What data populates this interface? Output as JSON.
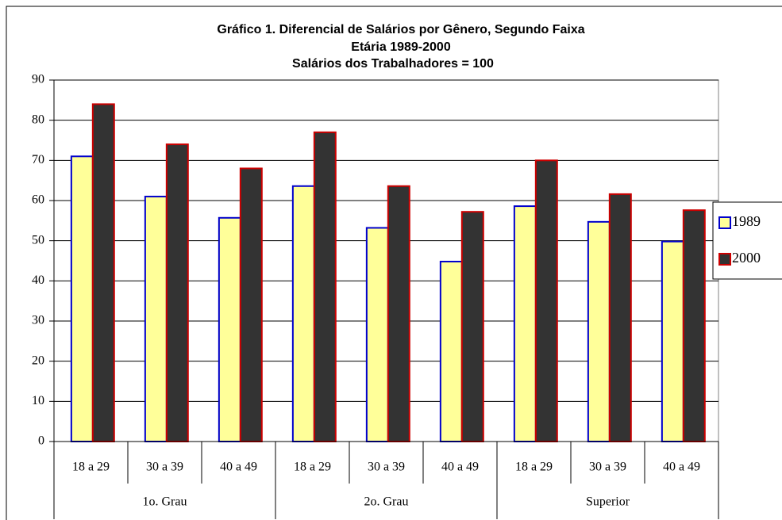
{
  "chart_data": {
    "type": "bar",
    "title": [
      "Gráfico 1. Diferencial de Salários por Gênero, Segundo Faixa",
      "Etária 1989-2000"
    ],
    "subtitle": "Salários dos Trabalhadores = 100",
    "categories": [
      "18 a 29",
      "30 a 39",
      "40 a 49",
      "18 a 29",
      "30 a 39",
      "40 a 49",
      "18 a 29",
      "30 a 39",
      "40 a 49"
    ],
    "groups": [
      "1o. Grau",
      "2o. Grau",
      "Superior"
    ],
    "series": [
      {
        "name": "1989",
        "color": "#ffff99",
        "edge": "#0000cc",
        "values": [
          71,
          61,
          55.7,
          63.6,
          53.2,
          44.8,
          58.6,
          54.7,
          49.8
        ]
      },
      {
        "name": "2000",
        "color": "#333333",
        "edge": "#cc0000",
        "values": [
          84,
          74,
          68,
          77,
          63.6,
          57.2,
          70,
          61.6,
          57.6
        ]
      }
    ],
    "ylim": [
      0,
      90
    ],
    "yticks": [
      0,
      10,
      20,
      30,
      40,
      50,
      60,
      70,
      80,
      90
    ],
    "grid": true,
    "legend": "right"
  }
}
